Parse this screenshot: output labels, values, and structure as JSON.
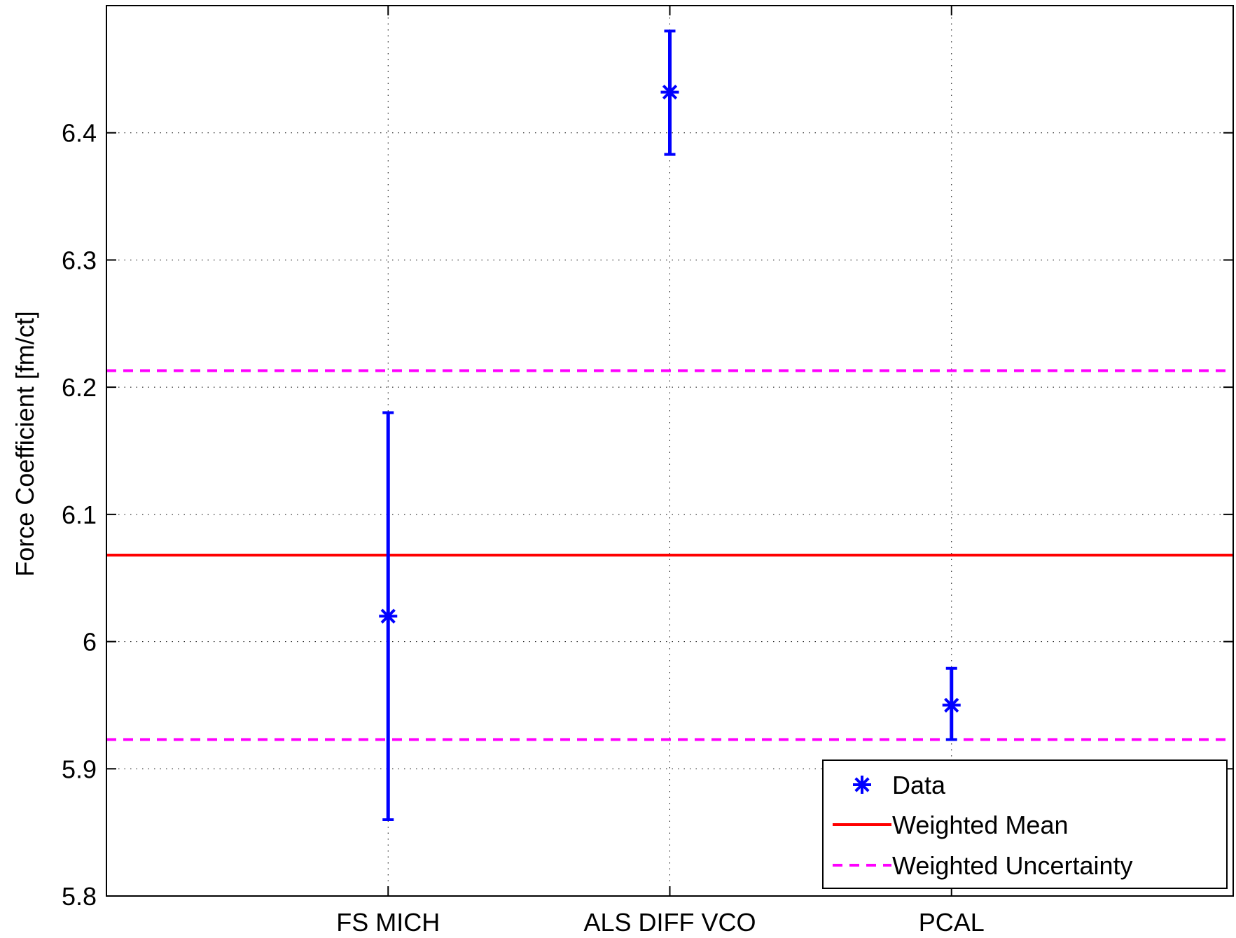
{
  "chart_data": {
    "type": "scatter",
    "title": "",
    "xlabel": "",
    "ylabel": "Force Coefficient [fm/ct]",
    "categories": [
      "FS MICH",
      "ALS DIFF VCO",
      "PCAL"
    ],
    "xlim": [
      0,
      4
    ],
    "ylim": [
      5.8,
      6.5
    ],
    "yticks": [
      5.8,
      5.9,
      6,
      6.1,
      6.2,
      6.3,
      6.4
    ],
    "ytick_labels": [
      "5.8",
      "5.9",
      "6",
      "6.1",
      "6.2",
      "6.3",
      "6.4"
    ],
    "grid": true,
    "legend_position": "bottom-right",
    "series": [
      {
        "name": "Data",
        "style": "asterisk-errorbar",
        "color": "#0000ff",
        "x": [
          1,
          2,
          3
        ],
        "values": [
          6.02,
          6.432,
          5.95
        ],
        "err_low": [
          5.86,
          6.383,
          5.923
        ],
        "err_high": [
          6.18,
          6.48,
          5.979
        ]
      },
      {
        "name": "Weighted Mean",
        "style": "solid",
        "color": "#ff0000",
        "value": 6.068
      },
      {
        "name": "Weighted Uncertainty",
        "style": "dashed",
        "color": "#ff00ff",
        "values": [
          6.213,
          5.923
        ]
      }
    ]
  }
}
